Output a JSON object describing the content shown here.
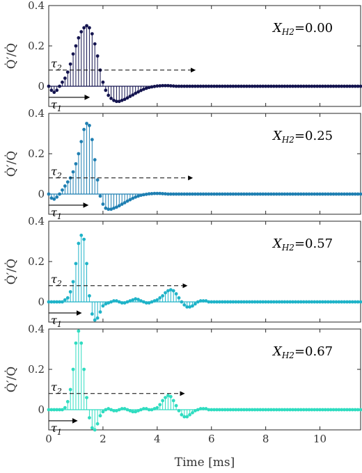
{
  "chart_data": {
    "type": "stem",
    "shared_x": {
      "label": "Time [ms]",
      "lim": [
        0,
        11.5
      ],
      "ticks": [
        0,
        2,
        4,
        6,
        8,
        10
      ],
      "tick_labels": [
        "0",
        "2",
        "4",
        "6",
        "8",
        "10"
      ],
      "step": 0.1
    },
    "panels": [
      {
        "annotation": "X_H2=0.00",
        "annotation_base": "X",
        "annotation_sub": "H2",
        "annotation_value": "=0.00",
        "ylabel": "Q̇′/Q̇",
        "ylim": [
          -0.1,
          0.4
        ],
        "y_ticks": [
          0,
          0.2,
          0.4
        ],
        "y_tick_labels": [
          "0",
          "0.2",
          "0.4"
        ],
        "color": "#14144f",
        "tau1": {
          "label": "τ1",
          "x_end": 1.5
        },
        "tau2": {
          "label": "τ2",
          "x_end": 5.4,
          "y": 0.08
        },
        "y": [
          0.0,
          -0.02,
          -0.03,
          -0.02,
          0.0,
          0.02,
          0.04,
          0.07,
          0.11,
          0.16,
          0.2,
          0.24,
          0.27,
          0.29,
          0.3,
          0.29,
          0.26,
          0.21,
          0.15,
          0.08,
          0.02,
          -0.02,
          -0.045,
          -0.06,
          -0.07,
          -0.075,
          -0.075,
          -0.07,
          -0.065,
          -0.058,
          -0.05,
          -0.043,
          -0.035,
          -0.028,
          -0.021,
          -0.015,
          -0.01,
          -0.006,
          -0.003,
          -0.001,
          0.001,
          0.002,
          0.003,
          0.003,
          0.003,
          0.002,
          0.001,
          0,
          0,
          0,
          0,
          0,
          0,
          0,
          0,
          0,
          0,
          0,
          0,
          0,
          0,
          0,
          0,
          0,
          0,
          0,
          0,
          0,
          0,
          0,
          0,
          0,
          0,
          0,
          0,
          0,
          0,
          0,
          0,
          0,
          0,
          0,
          0,
          0,
          0,
          0,
          0,
          0,
          0,
          0,
          0,
          0,
          0,
          0,
          0,
          0,
          0,
          0,
          0,
          0,
          0,
          0,
          0,
          0,
          0,
          0,
          0,
          0,
          0,
          0,
          0,
          0,
          0,
          0,
          0,
          0,
          0,
          0
        ]
      },
      {
        "annotation": "X_H2=0.25",
        "annotation_base": "X",
        "annotation_sub": "H2",
        "annotation_value": "=0.25",
        "ylabel": "Q̇′/Q̇",
        "ylim": [
          -0.1,
          0.4
        ],
        "y_ticks": [
          0,
          0.2,
          0.4
        ],
        "y_tick_labels": [
          "0",
          "0.2",
          "0.4"
        ],
        "color": "#1f7fb2",
        "tau1": {
          "label": "τ1",
          "x_end": 1.45
        },
        "tau2": {
          "label": "τ2",
          "x_end": 5.3,
          "y": 0.08
        },
        "y": [
          0.0,
          -0.02,
          -0.025,
          -0.015,
          0.0,
          0.02,
          0.04,
          0.06,
          0.08,
          0.11,
          0.15,
          0.2,
          0.26,
          0.32,
          0.35,
          0.34,
          0.27,
          0.17,
          0.07,
          -0.01,
          -0.05,
          -0.07,
          -0.075,
          -0.075,
          -0.07,
          -0.065,
          -0.058,
          -0.05,
          -0.043,
          -0.035,
          -0.028,
          -0.021,
          -0.015,
          -0.01,
          -0.006,
          -0.003,
          -0.001,
          0.001,
          0.002,
          0.003,
          0.003,
          0.003,
          0.002,
          0.001,
          0,
          0,
          0,
          0,
          0,
          0,
          0,
          0,
          0,
          0,
          0,
          0,
          0,
          0,
          0,
          0,
          0,
          0,
          0,
          0,
          0,
          0,
          0,
          0,
          0,
          0,
          0,
          0,
          0,
          0,
          0,
          0,
          0,
          0,
          0,
          0,
          0,
          0,
          0,
          0,
          0,
          0,
          0,
          0,
          0,
          0,
          0,
          0,
          0,
          0,
          0,
          0,
          0,
          0,
          0,
          0,
          0,
          0,
          0,
          0,
          0,
          0,
          0,
          0,
          0,
          0,
          0,
          0,
          0,
          0,
          0,
          0
        ]
      },
      {
        "annotation": "X_H2=0.57",
        "annotation_base": "X",
        "annotation_sub": "H2",
        "annotation_value": "=0.57",
        "ylabel": "Q̇′/Q̇",
        "ylim": [
          -0.1,
          0.4
        ],
        "y_ticks": [
          0,
          0.2,
          0.4
        ],
        "y_tick_labels": [
          "0",
          "0.2",
          "0.4"
        ],
        "color": "#1fb3c8",
        "tau1": {
          "label": "τ1",
          "x_end": 1.2
        },
        "tau2": {
          "label": "τ2",
          "x_end": 5.1,
          "y": 0.08
        },
        "y": [
          0.0,
          0.0,
          0.0,
          0.0,
          0.0,
          0.0,
          0.01,
          0.02,
          0.05,
          0.1,
          0.19,
          0.29,
          0.33,
          0.31,
          0.19,
          0.03,
          -0.06,
          -0.09,
          -0.08,
          -0.05,
          -0.02,
          -0.01,
          -0.005,
          0.0,
          0.005,
          0.005,
          0.0,
          -0.005,
          -0.005,
          0.0,
          0.005,
          0.01,
          0.015,
          0.012,
          0.005,
          0.0,
          -0.005,
          -0.005,
          0.0,
          0.005,
          0.01,
          0.02,
          0.03,
          0.045,
          0.055,
          0.06,
          0.055,
          0.04,
          0.02,
          0.0,
          -0.015,
          -0.025,
          -0.025,
          -0.02,
          -0.01,
          0.0,
          0.005,
          0.005,
          0.005,
          0.0,
          0,
          0,
          0,
          0,
          0,
          0,
          0,
          0,
          0,
          0,
          0,
          0,
          0,
          0,
          0,
          0,
          0,
          0,
          0,
          0,
          0,
          0,
          0,
          0,
          0,
          0,
          0,
          0,
          0,
          0,
          0,
          0,
          0,
          0,
          0,
          0,
          0,
          0,
          0,
          0,
          0,
          0,
          0,
          0,
          0,
          0,
          0,
          0,
          0,
          0,
          0,
          0,
          0,
          0,
          0,
          0,
          0
        ]
      },
      {
        "annotation": "X_H2=0.67",
        "annotation_base": "X",
        "annotation_sub": "H2",
        "annotation_value": "=0.67",
        "ylabel": "Q̇′/Q̇",
        "ylim": [
          -0.1,
          0.4
        ],
        "y_ticks": [
          0,
          0.2,
          0.4
        ],
        "y_tick_labels": [
          "0",
          "0.2",
          "0.4"
        ],
        "color": "#2fdcc0",
        "tau1": {
          "label": "τ1",
          "x_end": 1.05
        },
        "tau2": {
          "label": "τ2",
          "x_end": 5.0,
          "y": 0.08
        },
        "y": [
          0.0,
          0.0,
          0.0,
          0.0,
          0.0,
          0.0,
          0.01,
          0.04,
          0.1,
          0.2,
          0.33,
          0.39,
          0.33,
          0.2,
          0.06,
          -0.04,
          -0.09,
          -0.1,
          -0.07,
          -0.03,
          -0.01,
          0.0,
          0.005,
          0.0,
          -0.005,
          -0.005,
          0.0,
          0.005,
          0.005,
          0.0,
          -0.005,
          -0.01,
          -0.01,
          -0.005,
          0.0,
          0.005,
          0.005,
          0.0,
          0.0,
          0.005,
          0.01,
          0.025,
          0.045,
          0.06,
          0.07,
          0.065,
          0.045,
          0.02,
          -0.005,
          -0.025,
          -0.035,
          -0.035,
          -0.025,
          -0.015,
          -0.005,
          0.0,
          0.005,
          0.005,
          0.005,
          0.0,
          0,
          0,
          0,
          0,
          0,
          0,
          0,
          0,
          0,
          0,
          0,
          0,
          0,
          0,
          0,
          0,
          0,
          0,
          0,
          0,
          0,
          0,
          0,
          0,
          0,
          0,
          0,
          0,
          0,
          0,
          0,
          0,
          0,
          0,
          0,
          0,
          0,
          0,
          0,
          0,
          0,
          0,
          0,
          0,
          0,
          0,
          0,
          0,
          0,
          0,
          0,
          0,
          0,
          0,
          0,
          0,
          0
        ]
      }
    ]
  }
}
